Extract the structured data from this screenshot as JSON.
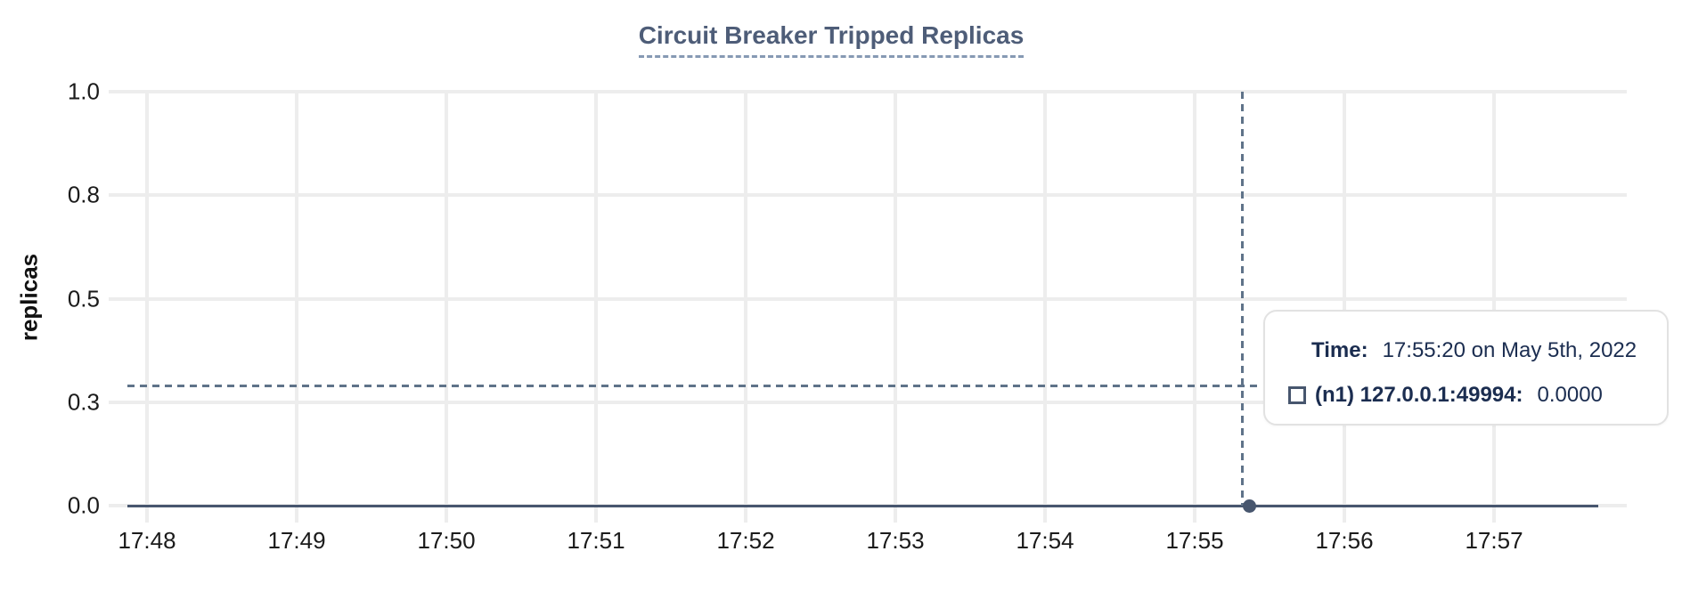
{
  "chart": {
    "title": "Circuit Breaker Tripped Replicas",
    "ylabel": "replicas"
  },
  "chart_data": {
    "type": "line",
    "title": "Circuit Breaker Tripped Replicas",
    "xlabel": "",
    "ylabel": "replicas",
    "ylim": [
      0,
      1
    ],
    "grid": true,
    "x_ticks": [
      "17:48",
      "17:49",
      "17:50",
      "17:51",
      "17:52",
      "17:53",
      "17:54",
      "17:55",
      "17:56",
      "17:57"
    ],
    "y_ticks": [
      {
        "label": "1.0",
        "value": 1.0
      },
      {
        "label": "0.8",
        "value": 0.75
      },
      {
        "label": "0.5",
        "value": 0.5
      },
      {
        "label": "0.3",
        "value": 0.25
      },
      {
        "label": "0.0",
        "value": 0.0
      }
    ],
    "series": [
      {
        "name": "(n1) 127.0.0.1:49994",
        "color": "#47566e",
        "marker": "square-outline",
        "x": [
          "17:48",
          "17:49",
          "17:50",
          "17:51",
          "17:52",
          "17:53",
          "17:54",
          "17:55",
          "17:56",
          "17:57"
        ],
        "values": [
          0,
          0,
          0,
          0,
          0,
          0,
          0,
          0,
          0,
          0
        ]
      }
    ],
    "cursor": {
      "x": "17:55:20",
      "snapped_value": 0.0,
      "crosshair": true
    }
  },
  "tooltip": {
    "time_label": "Time:",
    "time_value": "17:55:20 on May 5th, 2022",
    "series_marker_icon": "square-outline-icon",
    "series_label": "(n1) 127.0.0.1:49994:",
    "series_value": "0.0000"
  },
  "colors": {
    "background": "#ffffff",
    "title": "#4e5d78",
    "title_underline": "#8699b4",
    "axis_text": "#1b1b1b",
    "grid": "#ededed",
    "series_line": "#47566e",
    "crosshair": "#5f7389",
    "tooltip_text": "#1b2d50",
    "tooltip_border": "#e2e2e2"
  }
}
